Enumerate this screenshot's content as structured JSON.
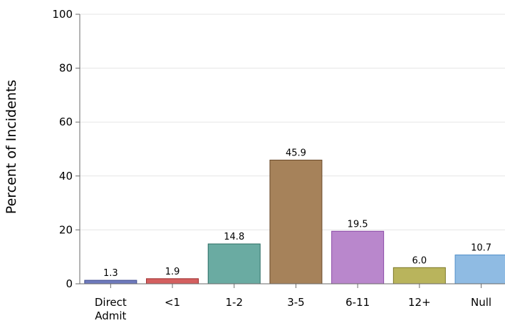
{
  "chart_data": {
    "type": "bar",
    "title": "",
    "xlabel": "",
    "ylabel": "Percent of Incidents",
    "ylim": [
      0,
      100
    ],
    "yticks": [
      0,
      20,
      40,
      60,
      80,
      100
    ],
    "grid": "horizontal",
    "categories": [
      [
        "Direct",
        "Admit"
      ],
      [
        "<1"
      ],
      [
        "1-2"
      ],
      [
        "3-5"
      ],
      [
        "6-11"
      ],
      [
        "12+"
      ],
      [
        "Null"
      ]
    ],
    "values": [
      1.3,
      1.9,
      14.8,
      45.9,
      19.5,
      6.0,
      10.7
    ],
    "value_labels": [
      "1.3",
      "1.9",
      "14.8",
      "45.9",
      "19.5",
      "6.0",
      "10.7"
    ],
    "colors": [
      "#6f7bbd",
      "#d45f5f",
      "#6aaba2",
      "#a6825a",
      "#b987cc",
      "#b9b45c",
      "#8fbbe3"
    ],
    "edge_colors": [
      "#3f4b8d",
      "#9e2f2f",
      "#2f6f66",
      "#6a4a2a",
      "#8a4aa6",
      "#7d7a2a",
      "#4f8fc8"
    ]
  }
}
